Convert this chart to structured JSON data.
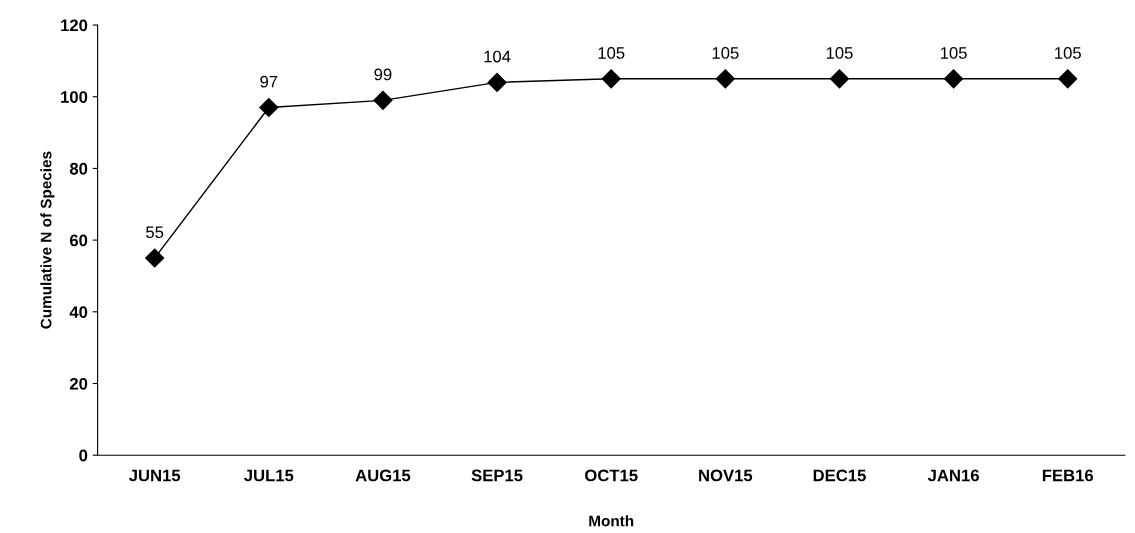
{
  "chart_data": {
    "type": "line",
    "xlabel": "Month",
    "ylabel": "Cumulative N of Species",
    "categories": [
      "JUN15",
      "JUL15",
      "AUG15",
      "SEP15",
      "OCT15",
      "NOV15",
      "DEC15",
      "JAN16",
      "FEB16"
    ],
    "series": [
      {
        "color": "#000000",
        "values": [
          55,
          97,
          99,
          104,
          105,
          105,
          105,
          105,
          105
        ]
      }
    ],
    "ylim": [
      0,
      120
    ],
    "yticks": [
      0,
      20,
      40,
      60,
      80,
      100,
      120
    ],
    "marker": "diamond",
    "line_style": "solid",
    "data_labels": true,
    "grid": false,
    "legend": false
  }
}
